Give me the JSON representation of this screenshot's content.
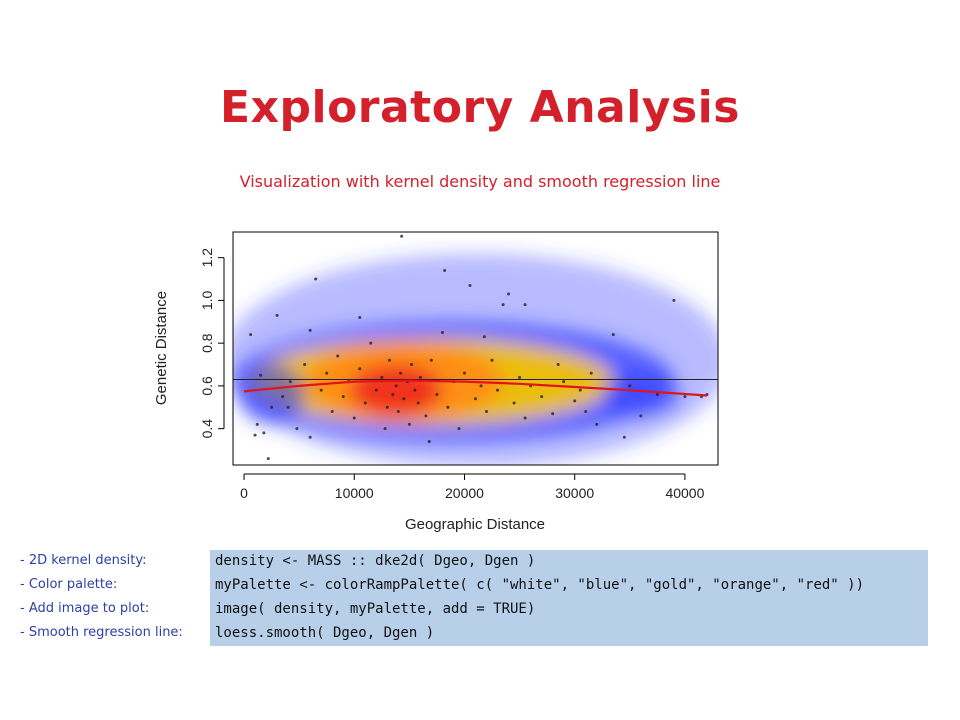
{
  "slide": {
    "title": "Exploratory Analysis",
    "subtitle": "Visualization with kernel density and smooth regression line"
  },
  "chart_data": {
    "type": "scatter",
    "xlabel": "Geographic Distance",
    "ylabel": "Genetic Distance",
    "xlim": [
      -1000,
      43000
    ],
    "ylim": [
      0.23,
      1.32
    ],
    "x_ticks": [
      0,
      10000,
      20000,
      30000,
      40000
    ],
    "x_tick_labels": [
      "0",
      "10000",
      "20000",
      "30000",
      "40000"
    ],
    "y_ticks": [
      0.4,
      0.6,
      0.8,
      1.0,
      1.2
    ],
    "y_tick_labels": [
      "0.4",
      "0.6",
      "0.8",
      "1.0",
      "1.2"
    ],
    "density_palette": [
      "white",
      "blue",
      "gold",
      "orange",
      "red"
    ],
    "density_note": "2D kernel density image with peak near x≈13000–15000, y≈0.58",
    "horizontal_line_y": 0.63,
    "smooth_line": {
      "color": "#e0141a",
      "x": [
        0,
        5000,
        10000,
        15000,
        20000,
        25000,
        30000,
        35000,
        42000
      ],
      "y": [
        0.575,
        0.6,
        0.62,
        0.625,
        0.62,
        0.61,
        0.595,
        0.58,
        0.555
      ]
    },
    "points": [
      [
        1200,
        0.42
      ],
      [
        1800,
        0.38
      ],
      [
        2500,
        0.5
      ],
      [
        600,
        0.84
      ],
      [
        1500,
        0.65
      ],
      [
        2200,
        0.26
      ],
      [
        1000,
        0.37
      ],
      [
        3000,
        0.93
      ],
      [
        3500,
        0.55
      ],
      [
        4200,
        0.62
      ],
      [
        4800,
        0.4
      ],
      [
        5500,
        0.7
      ],
      [
        6000,
        0.36
      ],
      [
        6500,
        1.1
      ],
      [
        7000,
        0.58
      ],
      [
        7500,
        0.66
      ],
      [
        8000,
        0.48
      ],
      [
        8500,
        0.74
      ],
      [
        9000,
        0.55
      ],
      [
        9500,
        0.62
      ],
      [
        10000,
        0.45
      ],
      [
        10500,
        0.68
      ],
      [
        11000,
        0.52
      ],
      [
        11500,
        0.8
      ],
      [
        12000,
        0.58
      ],
      [
        12500,
        0.64
      ],
      [
        13000,
        0.5
      ],
      [
        13200,
        0.72
      ],
      [
        13500,
        0.56
      ],
      [
        13800,
        0.6
      ],
      [
        14000,
        0.48
      ],
      [
        14200,
        0.66
      ],
      [
        14500,
        0.54
      ],
      [
        14800,
        0.62
      ],
      [
        15000,
        0.42
      ],
      [
        15200,
        0.7
      ],
      [
        15500,
        0.58
      ],
      [
        15800,
        0.52
      ],
      [
        16000,
        0.64
      ],
      [
        16500,
        0.46
      ],
      [
        17000,
        0.72
      ],
      [
        17500,
        0.56
      ],
      [
        18000,
        0.85
      ],
      [
        18500,
        0.5
      ],
      [
        19000,
        0.62
      ],
      [
        19500,
        0.4
      ],
      [
        20000,
        0.66
      ],
      [
        20500,
        1.07
      ],
      [
        21000,
        0.54
      ],
      [
        21500,
        0.6
      ],
      [
        22000,
        0.48
      ],
      [
        22500,
        0.72
      ],
      [
        23000,
        0.58
      ],
      [
        23500,
        0.98
      ],
      [
        24000,
        1.03
      ],
      [
        24500,
        0.52
      ],
      [
        25000,
        0.64
      ],
      [
        25500,
        0.45
      ],
      [
        26000,
        0.6
      ],
      [
        27000,
        0.55
      ],
      [
        28000,
        0.47
      ],
      [
        29000,
        0.62
      ],
      [
        30000,
        0.53
      ],
      [
        30500,
        0.58
      ],
      [
        31000,
        0.48
      ],
      [
        32000,
        0.42
      ],
      [
        33500,
        0.84
      ],
      [
        35000,
        0.6
      ],
      [
        36000,
        0.46
      ],
      [
        37500,
        0.56
      ],
      [
        39000,
        1.0
      ],
      [
        40000,
        0.55
      ],
      [
        41500,
        0.55
      ],
      [
        42000,
        0.56
      ],
      [
        14300,
        1.3
      ],
      [
        18200,
        1.14
      ],
      [
        25500,
        0.98
      ],
      [
        34500,
        0.36
      ],
      [
        31500,
        0.66
      ],
      [
        6000,
        0.86
      ],
      [
        16800,
        0.34
      ],
      [
        21800,
        0.83
      ],
      [
        10500,
        0.92
      ],
      [
        12800,
        0.4
      ],
      [
        28500,
        0.7
      ],
      [
        4000,
        0.5
      ]
    ]
  },
  "code": {
    "rows": [
      {
        "label": "- 2D kernel density:",
        "code": "density <- MASS :: dke2d( Dgeo, Dgen )"
      },
      {
        "label": "- Color palette:",
        "code": "myPalette <- colorRampPalette( c( \"white\", \"blue\", \"gold\", \"orange\", \"red\" ))"
      },
      {
        "label": "- Add image to plot:",
        "code": "image( density, myPalette, add = TRUE)"
      },
      {
        "label": "- Smooth regression line:",
        "code": "loess.smooth( Dgeo, Dgen )"
      }
    ]
  }
}
